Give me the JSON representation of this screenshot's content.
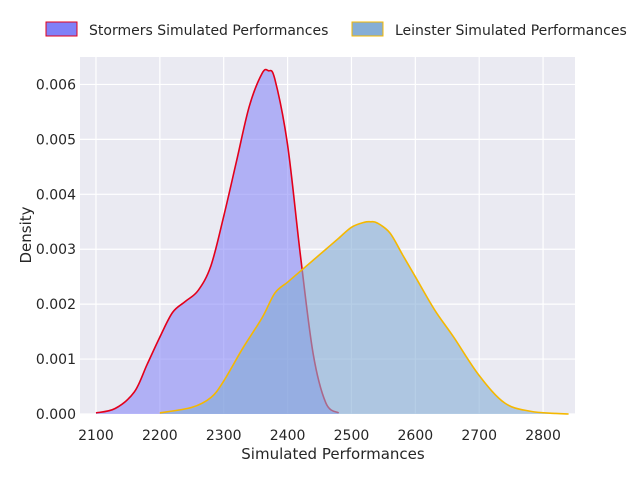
{
  "chart_data": {
    "type": "area",
    "title": "",
    "xlabel": "Simulated Performances",
    "ylabel": "Density",
    "xlim": [
      2075,
      2850
    ],
    "ylim": [
      0,
      0.0065
    ],
    "x_ticks": [
      2100,
      2200,
      2300,
      2400,
      2500,
      2600,
      2700,
      2800
    ],
    "y_ticks": [
      0.0,
      0.001,
      0.002,
      0.003,
      0.004,
      0.005,
      0.006
    ],
    "y_tick_labels": [
      "0.000",
      "0.001",
      "0.002",
      "0.003",
      "0.004",
      "0.005",
      "0.006"
    ],
    "grid": true,
    "legend_position": "top-center-outside",
    "series": [
      {
        "name": "Stormers Simulated Performances",
        "fill": "#8080f7",
        "fill_opacity": 0.55,
        "line": "#e3001b",
        "x": [
          2100,
          2130,
          2160,
          2180,
          2200,
          2220,
          2240,
          2260,
          2280,
          2300,
          2320,
          2340,
          2360,
          2370,
          2380,
          2400,
          2420,
          2440,
          2460,
          2480
        ],
        "y": [
          2e-05,
          0.0001,
          0.0004,
          0.0009,
          0.0014,
          0.00185,
          0.00205,
          0.00225,
          0.0027,
          0.0036,
          0.0046,
          0.0056,
          0.0062,
          0.00625,
          0.0061,
          0.0049,
          0.0029,
          0.0011,
          0.0002,
          2e-05
        ]
      },
      {
        "name": "Leinster Simulated Performances",
        "fill": "#86aed5",
        "fill_opacity": 0.6,
        "line": "#f5b800",
        "x": [
          2200,
          2250,
          2280,
          2300,
          2330,
          2360,
          2380,
          2400,
          2420,
          2440,
          2460,
          2480,
          2500,
          2520,
          2530,
          2540,
          2560,
          2580,
          2600,
          2630,
          2660,
          2700,
          2740,
          2780,
          2820,
          2840
        ],
        "y": [
          2e-05,
          0.00012,
          0.0003,
          0.0006,
          0.0012,
          0.00175,
          0.0022,
          0.0024,
          0.0026,
          0.0028,
          0.003,
          0.0032,
          0.0034,
          0.00349,
          0.0035,
          0.00348,
          0.0033,
          0.0029,
          0.0025,
          0.0019,
          0.0014,
          0.0007,
          0.0002,
          5e-05,
          1e-05,
          0.0
        ]
      }
    ]
  }
}
